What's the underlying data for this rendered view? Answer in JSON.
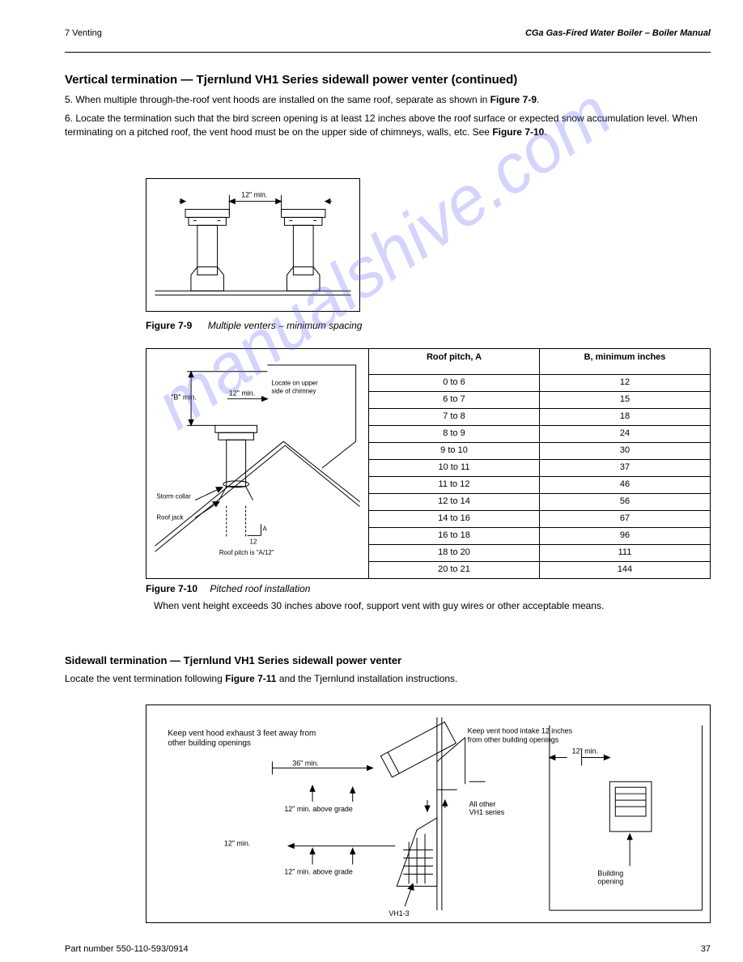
{
  "header": {
    "left": "7  Venting",
    "right": "CGa Gas-Fired Water Boiler – Boiler Manual"
  },
  "intro": {
    "heading": "Vertical termination — Tjernlund VH1 Series sidewall power venter (continued)",
    "para1_prefix": "5. When multiple through-the-roof vent hoods are installed on the same roof, separate as shown in ",
    "figref_79": "Figure 7-9",
    "para1_suffix": ".",
    "para2_prefix": "6. Locate the termination such that the bird screen opening is at least 12 inches above the roof surface or expected snow accumulation level. When terminating on a pitched roof, the vent hood must be on the upper side of chimneys, walls, etc. See ",
    "figref_710": "Figure 7-10",
    "para2_suffix": "."
  },
  "fig79": {
    "caption_prefix": "Figure 7-9",
    "caption_text": "Multiple venters – minimum spacing",
    "dim_label": "12\" min.",
    "svg": {
      "background": "#ffffff",
      "line_color": "#1a1a1a"
    }
  },
  "fig710": {
    "caption_prefix": "Figure 7-10",
    "caption_text": "Pitched roof installation",
    "note": "When vent height exceeds 30 inches above roof, support vent with guy wires or other acceptable means.",
    "labels": {
      "b_min": "\"B\" min.",
      "min_12": "12\" min.",
      "upper_side": "Locate on upper side of chimney",
      "storm_collar": "Storm collar",
      "roof_jack": "Roof jack",
      "pitch": "Roof pitch is \"A/12\""
    },
    "table": {
      "columns": [
        "Roof pitch, A",
        "B, minimum inches"
      ],
      "rows": [
        [
          "0 to 6",
          "12"
        ],
        [
          "6 to 7",
          "15"
        ],
        [
          "7 to 8",
          "18"
        ],
        [
          "8 to 9",
          "24"
        ],
        [
          "9 to 10",
          "30"
        ],
        [
          "10 to 11",
          "37"
        ],
        [
          "11 to 12",
          "46"
        ],
        [
          "12 to 14",
          "56"
        ],
        [
          "14 to 16",
          "67"
        ],
        [
          "16 to 18",
          "96"
        ],
        [
          "18 to 20",
          "111"
        ],
        [
          "20 to 21",
          "144"
        ]
      ]
    }
  },
  "section": {
    "heading": "Sidewall termination — Tjernlund VH1 Series sidewall power venter",
    "text_prefix": "Locate the vent termination following ",
    "figref": "Figure 7-11",
    "text_suffix": " and the Tjernlund installation instructions."
  },
  "fig711": {
    "labels": {
      "exhaust_keep_clear": "Keep vent hood exhaust 3 feet away from other building openings",
      "intake_keep_clear": "Keep vent hood intake 12 inches from other building openings",
      "min_36": "36\" min.",
      "min_12_side": "12\" min.",
      "min_12_grade": "12\" min. above grade",
      "vh1_3": "VH1-3",
      "other_vh1": "All other VH1 series",
      "bldg_opening": "Building opening"
    }
  },
  "footer": {
    "part": "Part number 550-110-593/0914",
    "page": "37"
  },
  "watermark": "manualshive.com",
  "svg_style": {
    "stroke": "#000000",
    "fill": "none",
    "text_color": "#000000",
    "font_size_small": "9",
    "font_size_tiny": "8"
  }
}
